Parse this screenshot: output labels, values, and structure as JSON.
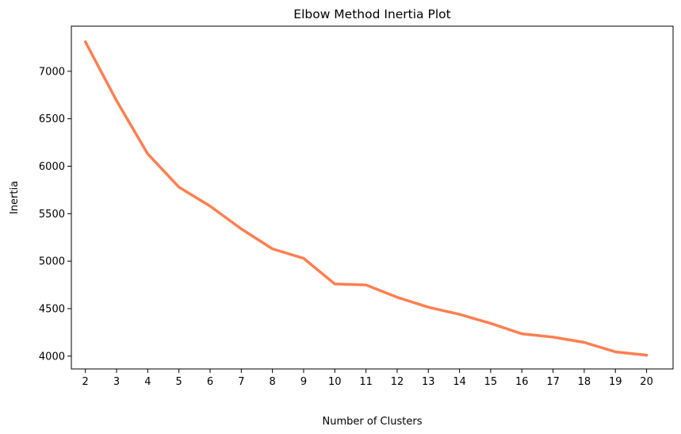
{
  "chart_data": {
    "type": "line",
    "title": "Elbow Method Inertia Plot",
    "xlabel": "Number of Clusters",
    "ylabel": "Inertia",
    "x": [
      2,
      3,
      4,
      5,
      6,
      7,
      8,
      9,
      10,
      11,
      12,
      13,
      14,
      15,
      16,
      17,
      18,
      19,
      20
    ],
    "series": [
      {
        "values": [
          7310,
          6690,
          6130,
          5780,
          5580,
          5340,
          5130,
          5030,
          4760,
          4750,
          4620,
          4515,
          4440,
          4345,
          4235,
          4200,
          4145,
          4045,
          4010
        ],
        "color": "#ff7f50"
      }
    ],
    "xticks": [
      "2",
      "3",
      "4",
      "5",
      "6",
      "7",
      "8",
      "9",
      "10",
      "11",
      "12",
      "13",
      "14",
      "15",
      "16",
      "17",
      "18",
      "19",
      "20"
    ],
    "yticks": [
      "4000",
      "4500",
      "5000",
      "5500",
      "6000",
      "6500",
      "7000"
    ],
    "ylim": [
      3865,
      7475
    ],
    "xlim": [
      1.55,
      20.85
    ],
    "grid": false,
    "legend": "none"
  }
}
